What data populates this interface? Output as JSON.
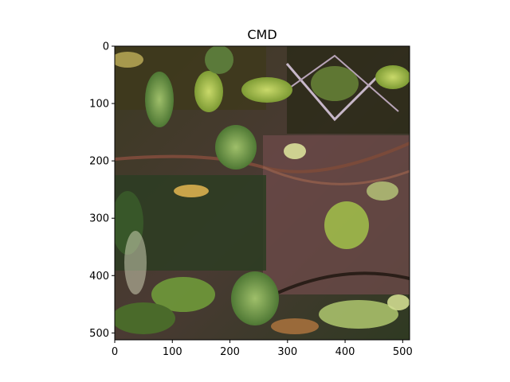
{
  "figure": {
    "title": "CMD",
    "image": {
      "width": 512,
      "height": 512,
      "description_icon": "foliage-photo-icon"
    },
    "x_axis": {
      "ticks": [
        "0",
        "100",
        "200",
        "300",
        "400",
        "500"
      ],
      "values": [
        0,
        100,
        200,
        300,
        400,
        500
      ],
      "range": [
        0,
        512
      ]
    },
    "y_axis": {
      "ticks": [
        "0",
        "100",
        "200",
        "300",
        "400",
        "500"
      ],
      "values": [
        0,
        100,
        200,
        300,
        400,
        500
      ],
      "range": [
        0,
        512
      ]
    }
  }
}
